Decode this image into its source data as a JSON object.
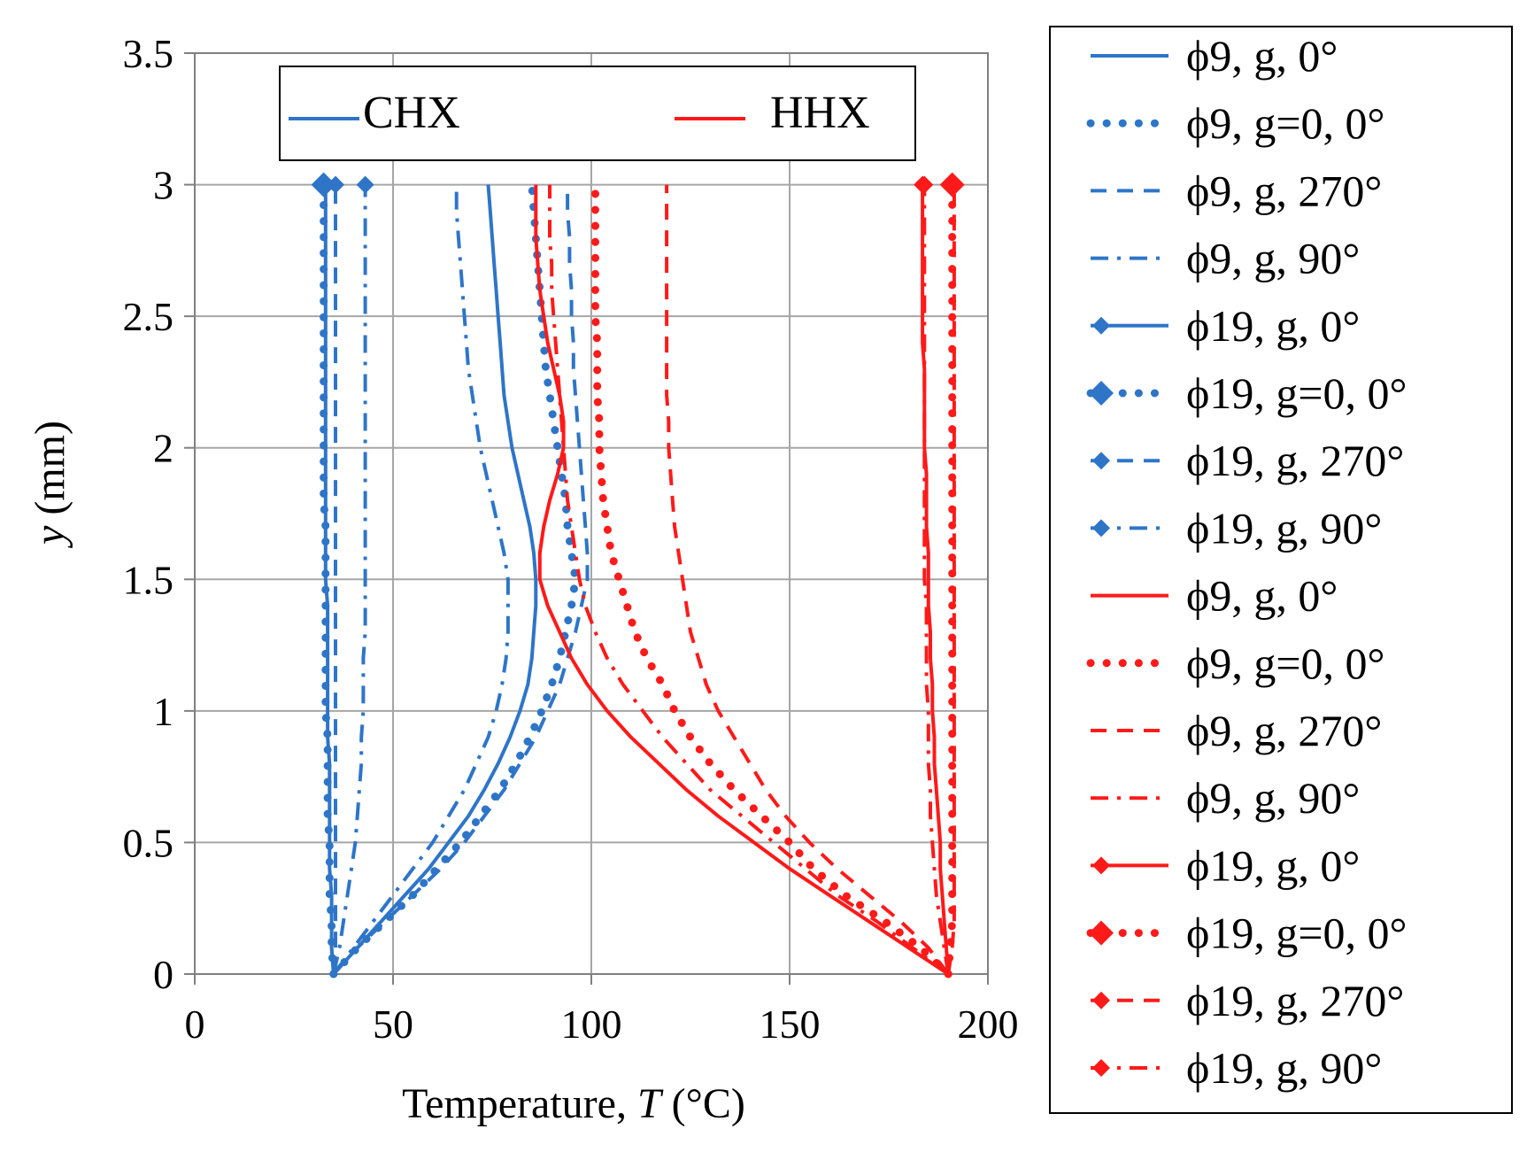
{
  "chart_data": {
    "type": "line",
    "title": "",
    "xlabel": "Temperature, ",
    "xlabel_var": "T",
    "xlabel_unit": " (°C)",
    "ylabel": " (mm)",
    "ylabel_var": "y",
    "xlim": [
      0,
      200
    ],
    "ylim": [
      0,
      3.5
    ],
    "x_ticks": [
      "0",
      "50",
      "100",
      "150",
      "200"
    ],
    "y_ticks": [
      "0",
      "0.5",
      "1",
      "1.5",
      "2",
      "2.5",
      "3",
      "3.5"
    ],
    "grid": true,
    "colors": {
      "CHX": "#2e75c8",
      "HHX": "#ff1a1a"
    },
    "group_legend": [
      {
        "label": "CHX",
        "color": "#2e75c8"
      },
      {
        "label": "HHX",
        "color": "#ff1a1a"
      }
    ],
    "y": [
      0,
      0.1,
      0.2,
      0.3,
      0.4,
      0.5,
      0.6,
      0.7,
      0.8,
      0.9,
      1.0,
      1.1,
      1.2,
      1.3,
      1.4,
      1.5,
      1.6,
      1.7,
      1.8,
      1.9,
      2.0,
      2.1,
      2.2,
      2.3,
      2.4,
      2.5,
      2.6,
      2.7,
      2.8,
      2.9,
      3.0
    ],
    "series": [
      {
        "name": "ϕ9, g, 0°",
        "group": "CHX",
        "dash": "solid",
        "marker": "none",
        "x": [
          35,
          41,
          47,
          53,
          59,
          64,
          69,
          73,
          76.5,
          79.5,
          82,
          84,
          85,
          85.5,
          86,
          86,
          85.5,
          84.5,
          83,
          81.5,
          80,
          79,
          78,
          77.5,
          77,
          76.5,
          76,
          75.5,
          75,
          74.5,
          74
        ]
      },
      {
        "name": "ϕ9, g=0, 0°",
        "group": "CHX",
        "dash": "dot",
        "marker": "none",
        "x": [
          35,
          41,
          48,
          55,
          61,
          67,
          72,
          77,
          81,
          84.5,
          87.5,
          90,
          92,
          93.5,
          95,
          96,
          95,
          94,
          93.5,
          92.5,
          91.5,
          90.5,
          89.5,
          88.5,
          88,
          87.5,
          87,
          86.5,
          86,
          85.5,
          85
        ]
      },
      {
        "name": "ϕ9, g, 270°",
        "group": "CHX",
        "dash": "dash",
        "marker": "none",
        "x": [
          35,
          41,
          48,
          55,
          62,
          68,
          73,
          78,
          82,
          86,
          89,
          92,
          94,
          96,
          97.5,
          99,
          99,
          98.5,
          98,
          97.5,
          97,
          96.5,
          96,
          95.5,
          95.5,
          95,
          95,
          94.5,
          94.5,
          94,
          94
        ]
      },
      {
        "name": "ϕ9, g, 90°",
        "group": "CHX",
        "dash": "dashdot",
        "marker": "none",
        "x": [
          35,
          40,
          45,
          50,
          55,
          60,
          64,
          68,
          71,
          74,
          76,
          77.5,
          78.5,
          79,
          79,
          79,
          78,
          76.5,
          75,
          73.5,
          72,
          71,
          70,
          69,
          68.5,
          68,
          67.5,
          67,
          66.5,
          66,
          66
        ]
      },
      {
        "name": "ϕ19, g, 0°",
        "group": "CHX",
        "dash": "solid",
        "marker": "diamond-small",
        "x": [
          35,
          34.5,
          34.5,
          34.5,
          34,
          34,
          34,
          34,
          34,
          33.5,
          33.5,
          33.5,
          33.5,
          33.5,
          33.5,
          33,
          33,
          33,
          33,
          33,
          33,
          33,
          33,
          33,
          33,
          33,
          33,
          33,
          33,
          33,
          33
        ]
      },
      {
        "name": "ϕ19, g=0, 0°",
        "group": "CHX",
        "dash": "dot",
        "marker": "diamond-large",
        "x": [
          35,
          34.5,
          34.5,
          34,
          34,
          34,
          33.5,
          33.5,
          33.5,
          33.5,
          33,
          33,
          33,
          33,
          33,
          33,
          33,
          33,
          32.5,
          32.5,
          32.5,
          32.5,
          32.5,
          32.5,
          32.5,
          32.5,
          32.5,
          32.5,
          32.5,
          32.5,
          32.5
        ]
      },
      {
        "name": "ϕ19, g, 270°",
        "group": "CHX",
        "dash": "dash",
        "marker": "diamond-small",
        "x": [
          35,
          35.5,
          35.5,
          35.5,
          35.5,
          35.5,
          35.5,
          35.5,
          35.5,
          35.5,
          35.5,
          35.5,
          35.5,
          35.5,
          35.5,
          35.5,
          35.5,
          35.5,
          35.5,
          35.5,
          35.5,
          35.5,
          35.5,
          35.5,
          35.5,
          35.5,
          35.5,
          35.5,
          35.5,
          35.5,
          35.5
        ]
      },
      {
        "name": "ϕ19, g, 90°",
        "group": "CHX",
        "dash": "dashdot",
        "marker": "diamond-small",
        "x": [
          35,
          36.5,
          37.5,
          38.5,
          39.5,
          40.5,
          41,
          41.5,
          42,
          42,
          42.5,
          42.5,
          42.5,
          43,
          43,
          43,
          43,
          43,
          43,
          43,
          43,
          43,
          43,
          43,
          43,
          43,
          43,
          43,
          43,
          43,
          43
        ]
      },
      {
        "name": "ϕ9, g, 0°",
        "group": "HHX",
        "dash": "solid",
        "marker": "none",
        "x": [
          190,
          180,
          170,
          160,
          150,
          141,
          132,
          124,
          117,
          110,
          104,
          99,
          95,
          92,
          89,
          87,
          87,
          88,
          89.5,
          91.5,
          93,
          93,
          92,
          90.5,
          89,
          88,
          87,
          86.5,
          86,
          86,
          86
        ]
      },
      {
        "name": "ϕ9, g=0, 0°",
        "group": "HHX",
        "dash": "dot",
        "marker": "none",
        "x": [
          190,
          183,
          174,
          164,
          156,
          150,
          143,
          136,
          130,
          125,
          121,
          118,
          114,
          111,
          109,
          107,
          105,
          104,
          103,
          102.5,
          102,
          102,
          101.5,
          101.5,
          101.5,
          101,
          101,
          101,
          101,
          101,
          101
        ]
      },
      {
        "name": "ϕ9, g, 270°",
        "group": "HHX",
        "dash": "dash",
        "marker": "none",
        "x": [
          190,
          185,
          178,
          170,
          162,
          155,
          149,
          144,
          140,
          136,
          132,
          129,
          127,
          125,
          124,
          123,
          122,
          121,
          120.5,
          120,
          119.5,
          119.5,
          119,
          119,
          119,
          119,
          119,
          119,
          119,
          119,
          119
        ]
      },
      {
        "name": "ϕ9, g, 90°",
        "group": "HHX",
        "dash": "dashdot",
        "marker": "none",
        "x": [
          190,
          181,
          172,
          162,
          154,
          146,
          138,
          130,
          124,
          118,
          113,
          108,
          104,
          101,
          98.5,
          97,
          96,
          95,
          94,
          93.5,
          93,
          92.5,
          92,
          91.5,
          91,
          90.5,
          90,
          90,
          89.5,
          89.5,
          89.5
        ]
      },
      {
        "name": "ϕ19, g, 0°",
        "group": "HHX",
        "dash": "solid",
        "marker": "diamond-small",
        "x": [
          190,
          189.5,
          189,
          188.5,
          188,
          188,
          187.5,
          187,
          186.5,
          186.5,
          186,
          186,
          185.5,
          185.5,
          185,
          185,
          185,
          184.5,
          184.5,
          184.5,
          184,
          184,
          184,
          184,
          183.5,
          183.5,
          183.5,
          183.5,
          183.5,
          183.5,
          183.5
        ]
      },
      {
        "name": "ϕ19, g=0, 0°",
        "group": "HHX",
        "dash": "dot",
        "marker": "diamond-large",
        "x": [
          190,
          190.5,
          191,
          191,
          191,
          191,
          191,
          191,
          191,
          191,
          191,
          191,
          191,
          191,
          191,
          191,
          191,
          191,
          191,
          191,
          191,
          191,
          191,
          191,
          191,
          191,
          191,
          191,
          191,
          191,
          191
        ]
      },
      {
        "name": "ϕ19, g, 270°",
        "group": "HHX",
        "dash": "dash",
        "marker": "diamond-small",
        "x": [
          190,
          191,
          191.5,
          191.5,
          191.5,
          191.5,
          191.5,
          191.5,
          191.5,
          191.5,
          191.5,
          191.5,
          191.5,
          191.5,
          191.5,
          191.5,
          191.5,
          191.5,
          191.5,
          191.5,
          191.5,
          191.5,
          191.5,
          191.5,
          191.5,
          191.5,
          191.5,
          191.5,
          191.5,
          191.5,
          191.5
        ]
      },
      {
        "name": "ϕ19, g, 90°",
        "group": "HHX",
        "dash": "dashdot",
        "marker": "diamond-small",
        "x": [
          190,
          189,
          188,
          187,
          186.5,
          186,
          185.5,
          185.5,
          185,
          185,
          185,
          184.5,
          184.5,
          184.5,
          184.5,
          184,
          184,
          184,
          184,
          184,
          184,
          184,
          184,
          184,
          184,
          184,
          184,
          184,
          184,
          184,
          184
        ]
      }
    ]
  }
}
